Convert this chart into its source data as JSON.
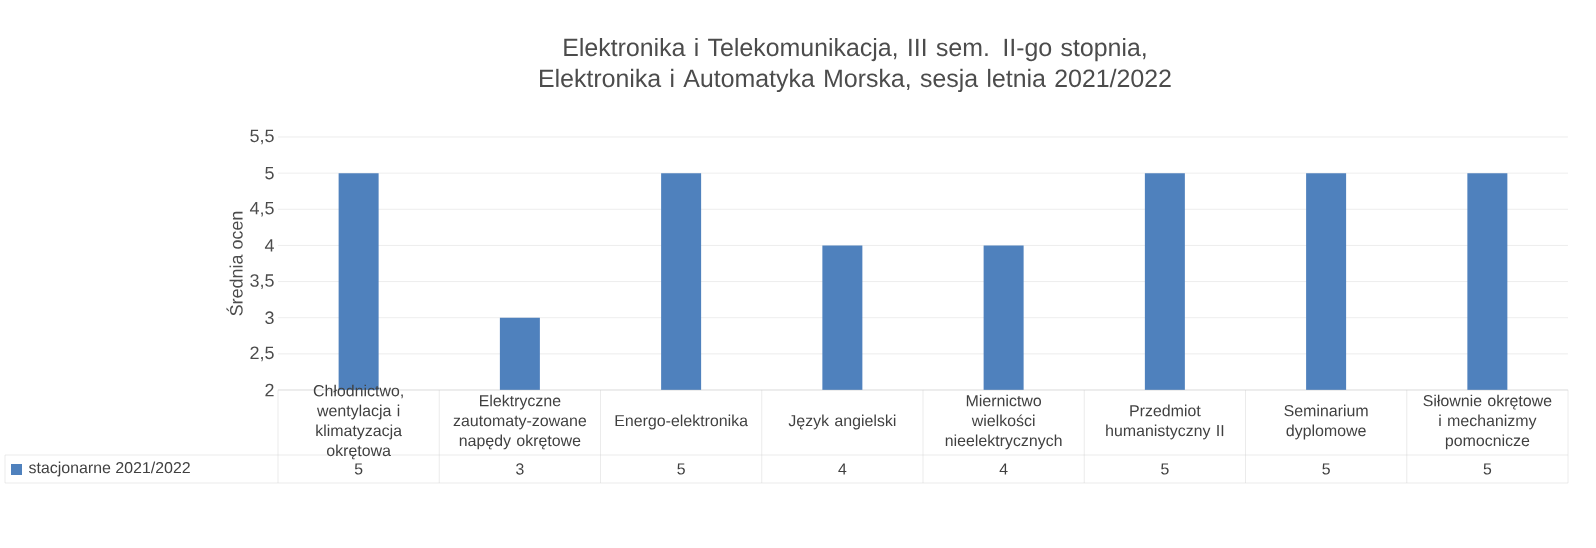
{
  "chart_data": {
    "type": "bar",
    "title": "Elektronika i Telekomunikacja, III sem. II-go stopnia, Elektronika i Automatyka Morska, sesja letnia 2021/2022",
    "ylabel": "Średnia ocen",
    "categories": [
      "Chłodnictwo, wentylacja i klimatyzacja okrętowa",
      "Elektryczne zautomaty-zowane napędy okrętowe",
      "Energo-elektronika",
      "Język angielski",
      "Miernictwo wielkości nieelektrycznych",
      "Przedmiot humanistyczny II",
      "Seminarium dyplomowe",
      "Siłownie okrętowe i mechanizmy pomocnicze"
    ],
    "series": [
      {
        "name": "stacjonarne 2021/2022",
        "color": "#4f81bd",
        "values": [
          5,
          3,
          5,
          4,
          4,
          5,
          5,
          5
        ]
      }
    ],
    "ylim": [
      2,
      5.5
    ],
    "yticks": [
      2,
      {
        "value": 2.5,
        "label": "2,5"
      },
      3,
      {
        "value": 3.5,
        "label": "3,5"
      },
      4,
      {
        "value": 4.5,
        "label": "4,5"
      },
      5,
      {
        "value": 5.5,
        "label": "5,5"
      }
    ],
    "grid": "y",
    "legend": "bottom",
    "data_labels": true
  }
}
